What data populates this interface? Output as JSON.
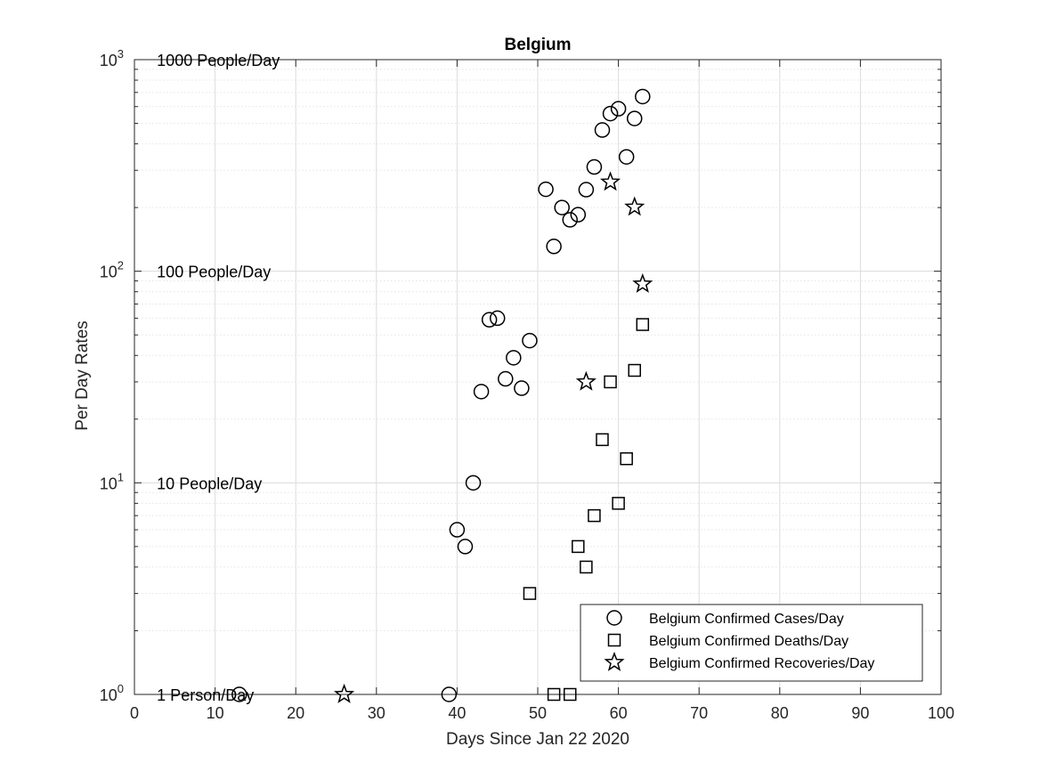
{
  "chart_data": {
    "type": "scatter",
    "title": "Belgium",
    "xlabel": "Days Since Jan 22 2020",
    "ylabel": "Per Day Rates",
    "xlim": [
      0,
      100
    ],
    "ylim": [
      1,
      1000
    ],
    "yscale": "log",
    "grid": true,
    "legend_position": "bottom-right",
    "x_ticks": [
      "0",
      "10",
      "20",
      "30",
      "40",
      "50",
      "60",
      "70",
      "80",
      "90",
      "100"
    ],
    "y_ticks": [
      {
        "base": "10",
        "exp": "0"
      },
      {
        "base": "10",
        "exp": "1"
      },
      {
        "base": "10",
        "exp": "2"
      },
      {
        "base": "10",
        "exp": "3"
      }
    ],
    "annotations": [
      {
        "text": "1 Person/Day",
        "x": 3,
        "y": 1
      },
      {
        "text": "10 People/Day",
        "x": 3,
        "y": 10
      },
      {
        "text": "100 People/Day",
        "x": 3,
        "y": 100
      },
      {
        "text": "1000 People/Day",
        "x": 3,
        "y": 1000
      }
    ],
    "series": [
      {
        "name": "Belgium Confirmed Cases/Day",
        "marker": "circle",
        "points": [
          [
            13,
            1
          ],
          [
            39,
            1
          ],
          [
            40,
            6
          ],
          [
            41,
            5
          ],
          [
            42,
            10
          ],
          [
            43,
            27
          ],
          [
            44,
            59
          ],
          [
            45,
            60
          ],
          [
            46,
            31
          ],
          [
            47,
            39
          ],
          [
            48,
            28
          ],
          [
            49,
            47
          ],
          [
            51,
            244
          ],
          [
            52,
            131
          ],
          [
            53,
            200
          ],
          [
            54,
            175
          ],
          [
            55,
            185
          ],
          [
            56,
            243
          ],
          [
            57,
            311
          ],
          [
            58,
            465
          ],
          [
            59,
            556
          ],
          [
            60,
            586
          ],
          [
            61,
            347
          ],
          [
            62,
            527
          ],
          [
            63,
            669
          ]
        ]
      },
      {
        "name": "Belgium Confirmed Deaths/Day",
        "marker": "square",
        "points": [
          [
            49,
            3
          ],
          [
            52,
            1
          ],
          [
            54,
            1
          ],
          [
            55,
            5
          ],
          [
            56,
            4
          ],
          [
            57,
            7
          ],
          [
            58,
            16
          ],
          [
            59,
            30
          ],
          [
            60,
            8
          ],
          [
            61,
            13
          ],
          [
            62,
            34
          ],
          [
            63,
            56
          ]
        ]
      },
      {
        "name": "Belgium Confirmed Recoveries/Day",
        "marker": "star",
        "points": [
          [
            26,
            1
          ],
          [
            56,
            30
          ],
          [
            59,
            264
          ],
          [
            62,
            201
          ],
          [
            63,
            87
          ]
        ]
      }
    ]
  }
}
